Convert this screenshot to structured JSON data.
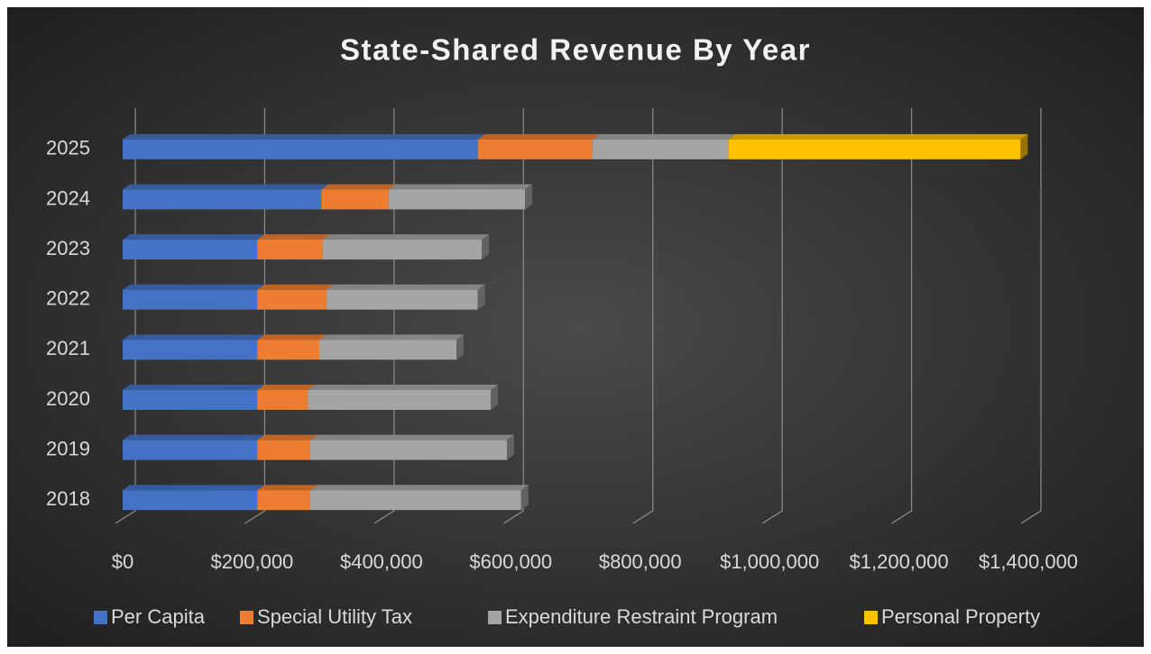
{
  "chart_data": {
    "type": "bar",
    "orientation": "horizontal",
    "stacked": true,
    "title": "State-Shared Revenue By Year",
    "categories": [
      "2018",
      "2019",
      "2020",
      "2021",
      "2022",
      "2023",
      "2024",
      "2025"
    ],
    "series": [
      {
        "name": "Per Capita",
        "color": "#4472c4",
        "values": [
          208000,
          208000,
          208000,
          208000,
          208000,
          208000,
          307000,
          549000
        ]
      },
      {
        "name": "Special Utility Tax",
        "color": "#ed7d31",
        "values": [
          82000,
          82000,
          78000,
          96000,
          107000,
          101000,
          104000,
          177000
        ]
      },
      {
        "name": "Expenditure Restraint Program",
        "color": "#a5a5a5",
        "values": [
          326000,
          304000,
          283000,
          212000,
          234000,
          246000,
          211000,
          210000
        ]
      },
      {
        "name": "Personal Property",
        "color": "#ffc000",
        "values": [
          0,
          0,
          0,
          0,
          0,
          0,
          0,
          452000
        ]
      }
    ],
    "xlim": [
      0,
      1400000
    ],
    "xticks": [
      {
        "value": 0,
        "label": "$0"
      },
      {
        "value": 200000,
        "label": "$200,000"
      },
      {
        "value": 400000,
        "label": "$400,000"
      },
      {
        "value": 600000,
        "label": "$600,000"
      },
      {
        "value": 800000,
        "label": "$800,000"
      },
      {
        "value": 1000000,
        "label": "$1,000,000"
      },
      {
        "value": 1200000,
        "label": "$1,200,000"
      },
      {
        "value": 1400000,
        "label": "$1,400,000"
      }
    ],
    "grid": true,
    "legend": "bottom"
  }
}
